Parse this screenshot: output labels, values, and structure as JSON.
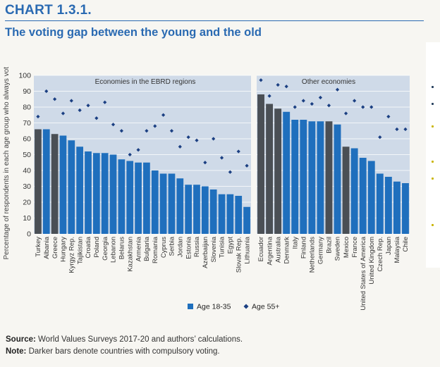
{
  "header": {
    "chart_number": "CHART 1.3.1.",
    "title": "The voting gap between the young and the old"
  },
  "footer": {
    "source_label": "Source:",
    "source_text": "World Values Surveys 2017-20 and authors’ calculations.",
    "note_label": "Note:",
    "note_text": "Darker bars denote countries with compulsory voting."
  },
  "colors": {
    "bar_light": "#1f6fbd",
    "bar_dark": "#4a4f55",
    "marker": "#1b3f82",
    "panel_bg": "#cfdae8",
    "brand": "#2a6ab2"
  },
  "chart_data": {
    "type": "bar",
    "ylabel": "Percentage of respondents in each age group who always vote",
    "ylim": [
      0,
      100
    ],
    "yticks": [
      0,
      10,
      20,
      30,
      40,
      50,
      60,
      70,
      80,
      90,
      100
    ],
    "grid": true,
    "legend_position": "bottom",
    "legend": [
      {
        "label": "Age 18-35",
        "marker": "square"
      },
      {
        "label": "Age 55+",
        "marker": "diamond"
      }
    ],
    "panels": [
      {
        "title": "Economies in the EBRD regions",
        "categories": [
          "Turkey",
          "Albania",
          "Greece",
          "Hungary",
          "Kyrgyz Rep.",
          "Tajikistan",
          "Croatia",
          "Poland",
          "Georgia",
          "Lebanon",
          "Belarus",
          "Kazakhstan",
          "Armenia",
          "Bulgaria",
          "Romania",
          "Cyprus",
          "Serbia",
          "Jordan",
          "Estonia",
          "Russia",
          "Azerbaijan",
          "Slovenia",
          "Tunisia",
          "Egypt",
          "Slovak Rep.",
          "Lithuania"
        ],
        "series": [
          {
            "name": "Age 18-35",
            "values": [
              66,
              66,
              63,
              62,
              59,
              55,
              52,
              51,
              51,
              50,
              47,
              46,
              45,
              45,
              40,
              38,
              38,
              35,
              31,
              31,
              30,
              28,
              25,
              25,
              24,
              17
            ]
          },
          {
            "name": "Age 55+",
            "values": [
              74,
              90,
              85,
              76,
              84,
              78,
              81,
              73,
              83,
              69,
              65,
              50,
              53,
              65,
              68,
              75,
              65,
              55,
              61,
              59,
              45,
              60,
              48,
              39,
              52,
              43
            ]
          }
        ],
        "compulsory": [
          "Turkey",
          "Greece"
        ]
      },
      {
        "title": "Other economies",
        "categories": [
          "Ecuador",
          "Argentina",
          "Australia",
          "Denmark",
          "Italy",
          "Finland",
          "Netherlands",
          "Germany",
          "Brazil",
          "Sweden",
          "Mexico",
          "France",
          "United States of America",
          "United Kingdom",
          "Czech Rep.",
          "Japan",
          "Malaysia",
          "Chile"
        ],
        "series": [
          {
            "name": "Age 18-35",
            "values": [
              88,
              82,
              79,
              77,
              72,
              72,
              71,
              71,
              71,
              69,
              55,
              54,
              48,
              46,
              38,
              36,
              33,
              32
            ]
          },
          {
            "name": "Age 55+",
            "values": [
              97,
              87,
              94,
              93,
              80,
              84,
              82,
              86,
              81,
              91,
              76,
              84,
              80,
              80,
              61,
              74,
              66,
              66
            ]
          }
        ],
        "compulsory": [
          "Ecuador",
          "Argentina",
          "Australia",
          "Brazil",
          "Mexico"
        ]
      }
    ]
  }
}
